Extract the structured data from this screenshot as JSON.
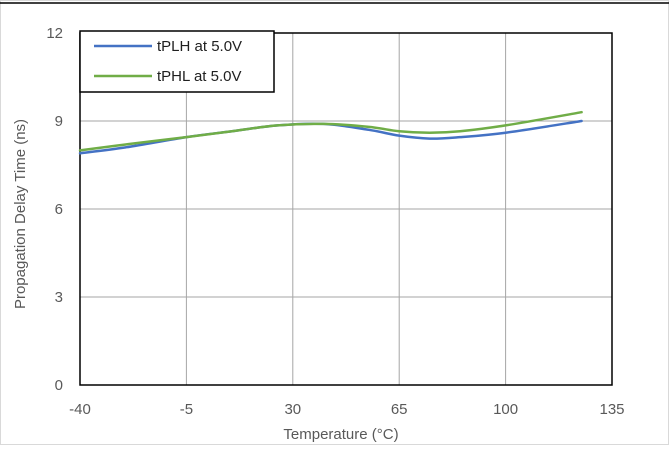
{
  "chart_data": {
    "type": "line",
    "title": "",
    "xlabel": "Temperature (°C)",
    "ylabel": "Propagation Delay Time (ns)",
    "xlim": [
      -40,
      135
    ],
    "ylim": [
      0,
      12
    ],
    "xticks": [
      -40,
      -5,
      30,
      65,
      100,
      135
    ],
    "yticks": [
      0,
      3,
      6,
      9,
      12
    ],
    "grid": true,
    "legend_position": "top-left",
    "series": [
      {
        "name": "tPLH at 5.0V",
        "color": "#4472C4",
        "x": [
          -40,
          -25,
          -5,
          10,
          25,
          40,
          55,
          65,
          75,
          85,
          100,
          125
        ],
        "y": [
          7.9,
          8.1,
          8.45,
          8.65,
          8.85,
          8.9,
          8.7,
          8.5,
          8.4,
          8.45,
          8.6,
          9.0
        ]
      },
      {
        "name": "tPHL at 5.0V",
        "color": "#70AD47",
        "x": [
          -40,
          -25,
          -5,
          10,
          25,
          40,
          55,
          65,
          75,
          85,
          100,
          125
        ],
        "y": [
          8.0,
          8.2,
          8.45,
          8.65,
          8.85,
          8.9,
          8.8,
          8.65,
          8.6,
          8.65,
          8.85,
          9.3
        ]
      }
    ]
  }
}
